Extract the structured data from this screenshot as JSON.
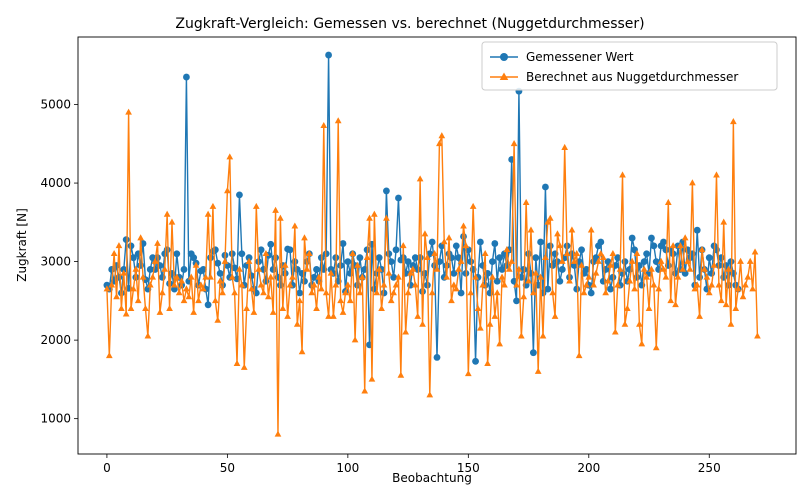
{
  "chart_data": {
    "type": "line",
    "title": "Zugkraft-Vergleich: Gemessen vs. berechnet (Nuggetdurchmesser)",
    "xlabel": "Beobachtung",
    "ylabel": "Zugkraft [N]",
    "xlim": [
      -12,
      286
    ],
    "ylim": [
      550,
      5860
    ],
    "x_ticks": [
      0,
      50,
      100,
      150,
      200,
      250
    ],
    "y_ticks": [
      1000,
      2000,
      3000,
      4000,
      5000
    ],
    "grid": false,
    "legend_position": "top-right",
    "n_points": 274,
    "series": [
      {
        "name": "Gemessener Wert",
        "color": "#1f77b4",
        "marker": "circle",
        "values": [
          2700,
          2650,
          2900,
          2750,
          2950,
          2800,
          2600,
          2900,
          3280,
          2660,
          3200,
          3050,
          2800,
          3100,
          2950,
          3230,
          2770,
          2650,
          2900,
          3050,
          2900,
          3050,
          2950,
          2800,
          3100,
          3150,
          2720,
          2850,
          2650,
          3100,
          2800,
          2700,
          2900,
          5350,
          2750,
          3100,
          3050,
          2980,
          2700,
          2880,
          2900,
          2650,
          2450,
          3050,
          3130,
          3150,
          2980,
          2850,
          2700,
          3080,
          2950,
          2800,
          3100,
          2920,
          2780,
          3850,
          3100,
          2700,
          2950,
          3050,
          2820,
          2650,
          2600,
          3000,
          3150,
          2900,
          2750,
          3080,
          3220,
          2900,
          3050,
          2800,
          2700,
          2950,
          2850,
          3160,
          3150,
          2700,
          3000,
          2900,
          2600,
          2850,
          2750,
          3000,
          3100,
          2700,
          2800,
          2900,
          2750,
          3050,
          2900,
          3100,
          5630,
          2900,
          2850,
          3050,
          2750,
          2950,
          3230,
          2620,
          3000,
          2850,
          3100,
          2950,
          2700,
          3050,
          2800,
          2900,
          3150,
          1940,
          3220,
          2650,
          2850,
          3050,
          2900,
          2600,
          3900,
          3100,
          3000,
          2800,
          3150,
          3810,
          3020,
          3050,
          2850,
          3000,
          2700,
          2950,
          3050,
          2900,
          3050,
          2620,
          2850,
          2700,
          3100,
          3250,
          2950,
          1780,
          3000,
          3200,
          2800,
          2950,
          3100,
          3050,
          2850,
          3200,
          3050,
          2600,
          3320,
          2850,
          3150,
          3000,
          2900,
          1730,
          2800,
          3250,
          2950,
          2700,
          2850,
          2600,
          3000,
          3230,
          2750,
          3050,
          2900,
          3100,
          2950,
          3150,
          4300,
          2750,
          2500,
          5170,
          2800,
          2900,
          2700,
          3100,
          2850,
          1840,
          3050,
          2700,
          3250,
          2600,
          3950,
          2650,
          3200,
          2950,
          3100,
          3000,
          2750,
          2900,
          3050,
          3200,
          2800,
          3100,
          2950,
          2650,
          3000,
          3150,
          2850,
          2900,
          2700,
          2600,
          3000,
          3050,
          3200,
          3250,
          2750,
          2900,
          3000,
          2650,
          2800,
          2950,
          3050,
          2700,
          2850,
          3000,
          2750,
          2900,
          3300,
          3150,
          2800,
          2950,
          2700,
          3000,
          3100,
          2850,
          3300,
          3200,
          3000,
          2900,
          3200,
          3250,
          3150,
          2950,
          3150,
          3100,
          2850,
          3200,
          2900,
          3250,
          2850,
          3150,
          3050,
          3100,
          2700,
          3400,
          2800,
          3150,
          2900,
          2650,
          3050,
          2850,
          3200,
          3150,
          2950,
          3050,
          2800,
          2950,
          2700,
          3000,
          2850,
          2700,
          2650
        ]
      },
      {
        "name": "Berechnet aus Nuggetdurchmesser",
        "color": "#ff7f0e",
        "marker": "triangle-up",
        "values": [
          2650,
          1800,
          2700,
          3100,
          2550,
          3200,
          2400,
          2850,
          2330,
          4900,
          2400,
          2650,
          2900,
          2500,
          3300,
          2800,
          2400,
          2050,
          2700,
          2800,
          3000,
          3230,
          2350,
          2600,
          2900,
          3600,
          2400,
          3500,
          2700,
          2800,
          2600,
          2750,
          2500,
          2650,
          2550,
          2800,
          2350,
          2950,
          2500,
          2700,
          2650,
          2800,
          3600,
          2800,
          3700,
          2500,
          2250,
          2750,
          2600,
          3000,
          3900,
          4330,
          2800,
          2600,
          1700,
          2900,
          2700,
          1650,
          2400,
          3000,
          2650,
          2350,
          3700,
          2900,
          2700,
          2600,
          3100,
          2550,
          2800,
          2350,
          3650,
          800,
          3550,
          2400,
          2950,
          2300,
          2700,
          2800,
          3450,
          2200,
          2500,
          1850,
          3300,
          2900,
          3100,
          2600,
          2700,
          2400,
          2800,
          2650,
          4730,
          2600,
          2300,
          2850,
          2300,
          2700,
          4790,
          2500,
          2350,
          2600,
          2700,
          2500,
          3100,
          2000,
          2950,
          2600,
          2800,
          1350,
          3050,
          3550,
          1500,
          3600,
          2600,
          2900,
          2400,
          2700,
          3550,
          2850,
          2500,
          2600,
          2700,
          2800,
          1550,
          3200,
          2100,
          2600,
          2850,
          2900,
          2700,
          2300,
          4050,
          2200,
          3350,
          3050,
          1300,
          2600,
          3100,
          2900,
          4500,
          4600,
          3250,
          2800,
          3300,
          2500,
          2700,
          2650,
          2900,
          3000,
          3450,
          3200,
          1570,
          2600,
          3700,
          2800,
          2400,
          2150,
          2700,
          3100,
          1700,
          2200,
          2800,
          2300,
          2600,
          1950,
          2800,
          2700,
          3150,
          2900,
          3000,
          4500,
          2700,
          2900,
          2050,
          2550,
          3750,
          2750,
          3400,
          2600,
          2850,
          1600,
          2800,
          2050,
          3050,
          3500,
          3550,
          2600,
          2300,
          3350,
          3200,
          3000,
          4450,
          3100,
          2750,
          3400,
          3000,
          3100,
          1800,
          2950,
          2600,
          2700,
          2800,
          3400,
          2700,
          2850,
          3000,
          3100,
          3050,
          2600,
          2750,
          2950,
          3100,
          2100,
          2700,
          2900,
          4100,
          2200,
          2400,
          2750,
          3000,
          2650,
          3100,
          2200,
          1950,
          2900,
          2800,
          2400,
          2900,
          2700,
          1900,
          2650,
          3000,
          2900,
          2800,
          3750,
          2500,
          3200,
          2450,
          2800,
          3200,
          2900,
          3300,
          3000,
          2900,
          4000,
          2650,
          2700,
          2300,
          3150,
          2900,
          2800,
          2600,
          2700,
          2950,
          4100,
          2700,
          2500,
          3500,
          2450,
          2900,
          2200,
          4780,
          2400,
          2650,
          3000,
          2550,
          2700,
          2800,
          3000,
          2650,
          3120,
          2050
        ]
      }
    ]
  }
}
